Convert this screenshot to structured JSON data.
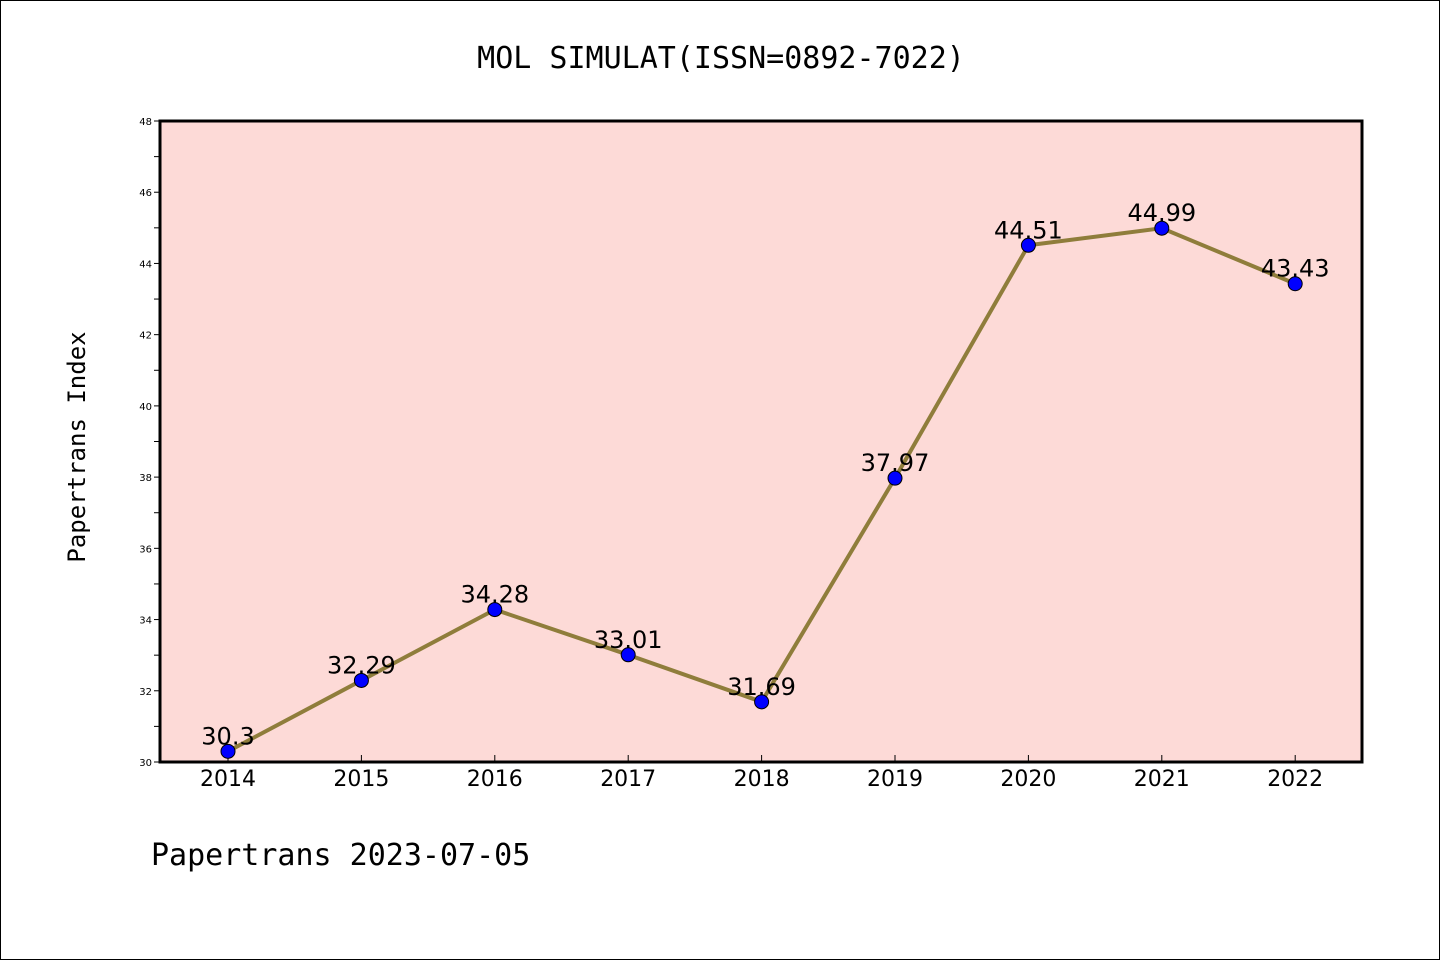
{
  "chart_data": {
    "type": "line",
    "title": "MOL SIMULAT(ISSN=0892-7022)",
    "xlabel": "",
    "ylabel": "Papertrans Index",
    "footer": "Papertrans 2023-07-05",
    "categories": [
      "2014",
      "2015",
      "2016",
      "2017",
      "2018",
      "2019",
      "2020",
      "2021",
      "2022"
    ],
    "values": [
      30.3,
      32.29,
      34.28,
      33.01,
      31.69,
      37.97,
      44.51,
      44.99,
      43.43
    ],
    "value_labels": [
      "30.3",
      "32.29",
      "34.28",
      "33.01",
      "31.69",
      "37.97",
      "44.51",
      "44.99",
      "43.43"
    ],
    "ylim": [
      30,
      48
    ],
    "yticks": [
      30,
      32,
      34,
      36,
      38,
      40,
      42,
      44,
      46,
      48
    ],
    "grid": false,
    "colors": {
      "plot_background": "#fddad7",
      "line": "#8f7d3b",
      "marker": "#0000ff",
      "axis": "#000000"
    }
  }
}
